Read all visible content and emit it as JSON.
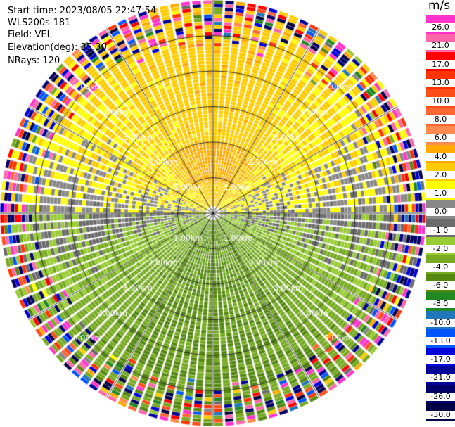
{
  "header": {
    "start_time": "Start time: 2023/08/05 22:47:54",
    "instrument": "WLS200s-181",
    "field": "Field: VEL",
    "elevation": "Elevation(deg): 35.30",
    "nrays": "NRays: 120"
  },
  "colorbar": {
    "unit": "m/s",
    "ticks": [
      "26.0",
      "21.0",
      "17.0",
      "13.0",
      "10.0",
      "8.0",
      "6.0",
      "4.0",
      "2.0",
      "1.0",
      "0.0",
      "-1.0",
      "-2.0",
      "-4.0",
      "-6.0",
      "-8.0",
      "-10.0",
      "-13.0",
      "-17.0",
      "-21.0",
      "-26.0",
      "-30.0"
    ],
    "bins": [
      {
        "from": 26,
        "to": 30,
        "color": "#ff33cc"
      },
      {
        "from": 21,
        "to": 26,
        "color": "#ff66aa"
      },
      {
        "from": 17,
        "to": 21,
        "color": "#ff0000"
      },
      {
        "from": 13,
        "to": 17,
        "color": "#ff3300"
      },
      {
        "from": 10,
        "to": 13,
        "color": "#ff4d1a"
      },
      {
        "from": 8,
        "to": 10,
        "color": "#ff6633"
      },
      {
        "from": 6,
        "to": 8,
        "color": "#ff8a50"
      },
      {
        "from": 4,
        "to": 6,
        "color": "#ffaa00"
      },
      {
        "from": 2,
        "to": 4,
        "color": "#ffcc00"
      },
      {
        "from": 1,
        "to": 2,
        "color": "#ffff00"
      },
      {
        "from": 0,
        "to": 1,
        "color": "#888888"
      },
      {
        "from": -1,
        "to": 0,
        "color": "#6b6b6b"
      },
      {
        "from": -2,
        "to": -1,
        "color": "#99cc33"
      },
      {
        "from": -4,
        "to": -2,
        "color": "#77aa22"
      },
      {
        "from": -6,
        "to": -4,
        "color": "#558811"
      },
      {
        "from": -8,
        "to": -6,
        "color": "#228822"
      },
      {
        "from": -10,
        "to": -8,
        "color": "#2277bb"
      },
      {
        "from": -13,
        "to": -10,
        "color": "#0055ff"
      },
      {
        "from": -17,
        "to": -13,
        "color": "#0000dd"
      },
      {
        "from": -21,
        "to": -17,
        "color": "#000099"
      },
      {
        "from": -26,
        "to": -21,
        "color": "#000066"
      },
      {
        "from": -30,
        "to": -26,
        "color": "#000044"
      }
    ]
  },
  "chart_data": {
    "type": "heatmap",
    "projection": "polar PPI",
    "field": "VEL",
    "units": "m/s",
    "nrays": 120,
    "range_rings_km": [
      1,
      2,
      3,
      4,
      5
    ],
    "range_max_km": 6,
    "ring_labels": [
      "1.00km",
      "2.00km",
      "3.00km",
      "4.00km",
      "5.00km"
    ],
    "spoke_angles_deg": [
      0,
      30,
      60,
      90,
      120,
      150,
      180,
      210,
      240,
      270,
      300,
      330
    ],
    "value_range": [
      -30,
      30
    ],
    "pattern": {
      "near_range_north_sector_ms": 6,
      "north_half_typical_ms": 2.5,
      "south_half_typical_ms": -4,
      "outer_range_noise": true
    }
  }
}
